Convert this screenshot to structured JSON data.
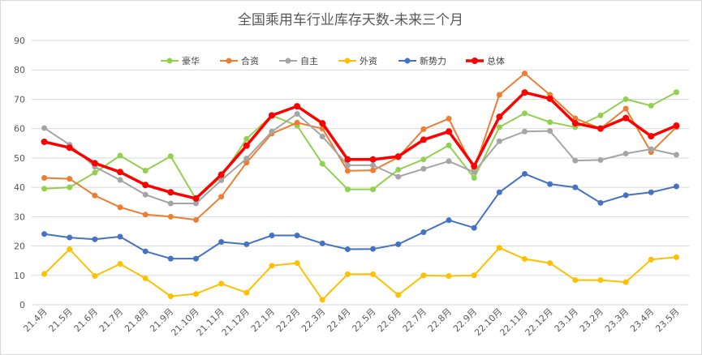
{
  "chart_data": {
    "type": "line",
    "title": "全国乘用车行业库存天数-未来三个月",
    "xlabel": "",
    "ylabel": "",
    "ylim": [
      0,
      90
    ],
    "yticks": [
      "0",
      "10",
      "20",
      "30",
      "40",
      "50",
      "60",
      "70",
      "80",
      "90"
    ],
    "grid": true,
    "legend_position": "top",
    "categories": [
      "21.4月",
      "21.5月",
      "21.6月",
      "21.7月",
      "21.8月",
      "21.9月",
      "21.10月",
      "21.11月",
      "21.12月",
      "22.1月",
      "22.2月",
      "22.3月",
      "22.4月",
      "22.5月",
      "22.6月",
      "22.7月",
      "22.8月",
      "22.9月",
      "22.10月",
      "22.11月",
      "22.12月",
      "23.1月",
      "23.2月",
      "23.3月",
      "23.4月",
      "23.5月"
    ],
    "series": [
      {
        "name": "豪华",
        "color": "#92d050",
        "values": [
          39.5,
          40,
          45,
          50.8,
          45.7,
          50.6,
          36,
          43.6,
          56.5,
          64.5,
          61,
          48,
          39.3,
          39.3,
          46,
          49.5,
          54.3,
          43.2,
          60.5,
          65.2,
          62.2,
          60.5,
          64.5,
          70,
          67.8,
          72.4
        ]
      },
      {
        "name": "合资",
        "color": "#ed7d31",
        "values": [
          43.2,
          42.9,
          37.2,
          33.2,
          30.7,
          30,
          28.9,
          36.8,
          48.4,
          58.3,
          62,
          60,
          45.6,
          45.8,
          50.2,
          59.8,
          63.4,
          46,
          71.5,
          78.8,
          71.5,
          63.5,
          60,
          66.8,
          52,
          60.5
        ]
      },
      {
        "name": "自主",
        "color": "#a5a5a5",
        "values": [
          60.2,
          54.5,
          47,
          42.5,
          37.5,
          34.5,
          34.5,
          42.4,
          49.8,
          59,
          65,
          57.3,
          47.5,
          47.5,
          43.6,
          46.3,
          48.9,
          45.2,
          55.7,
          59,
          59.2,
          49.1,
          49.3,
          51.5,
          53,
          51.1
        ]
      },
      {
        "name": "外资",
        "color": "#ffc000",
        "values": [
          10.5,
          18.9,
          9.8,
          13.9,
          9,
          2.9,
          3.7,
          7.2,
          4.1,
          13.3,
          14.2,
          1.7,
          10.4,
          10.4,
          3.3,
          10,
          9.8,
          10,
          19.4,
          15.6,
          14.2,
          8.4,
          8.4,
          7.7,
          15.4,
          16.2
        ]
      },
      {
        "name": "新势力",
        "color": "#4472c4",
        "values": [
          24.1,
          22.9,
          22.3,
          23.2,
          18.2,
          15.7,
          15.7,
          21.4,
          20.6,
          23.6,
          23.6,
          20.9,
          18.9,
          19,
          20.6,
          24.7,
          28.8,
          26.2,
          38.3,
          44.6,
          41.1,
          40,
          34.7,
          37.3,
          38.3,
          40.3
        ]
      },
      {
        "name": "总体",
        "color": "#ff0000",
        "values": [
          55.5,
          53.5,
          48.2,
          45.2,
          40.8,
          38.3,
          36.2,
          44.3,
          54.2,
          64.5,
          67.6,
          61.8,
          49.5,
          49.5,
          50.5,
          56.2,
          59,
          47.2,
          64,
          72.3,
          70.2,
          61.8,
          60,
          63.6,
          57.4,
          61
        ]
      }
    ]
  }
}
